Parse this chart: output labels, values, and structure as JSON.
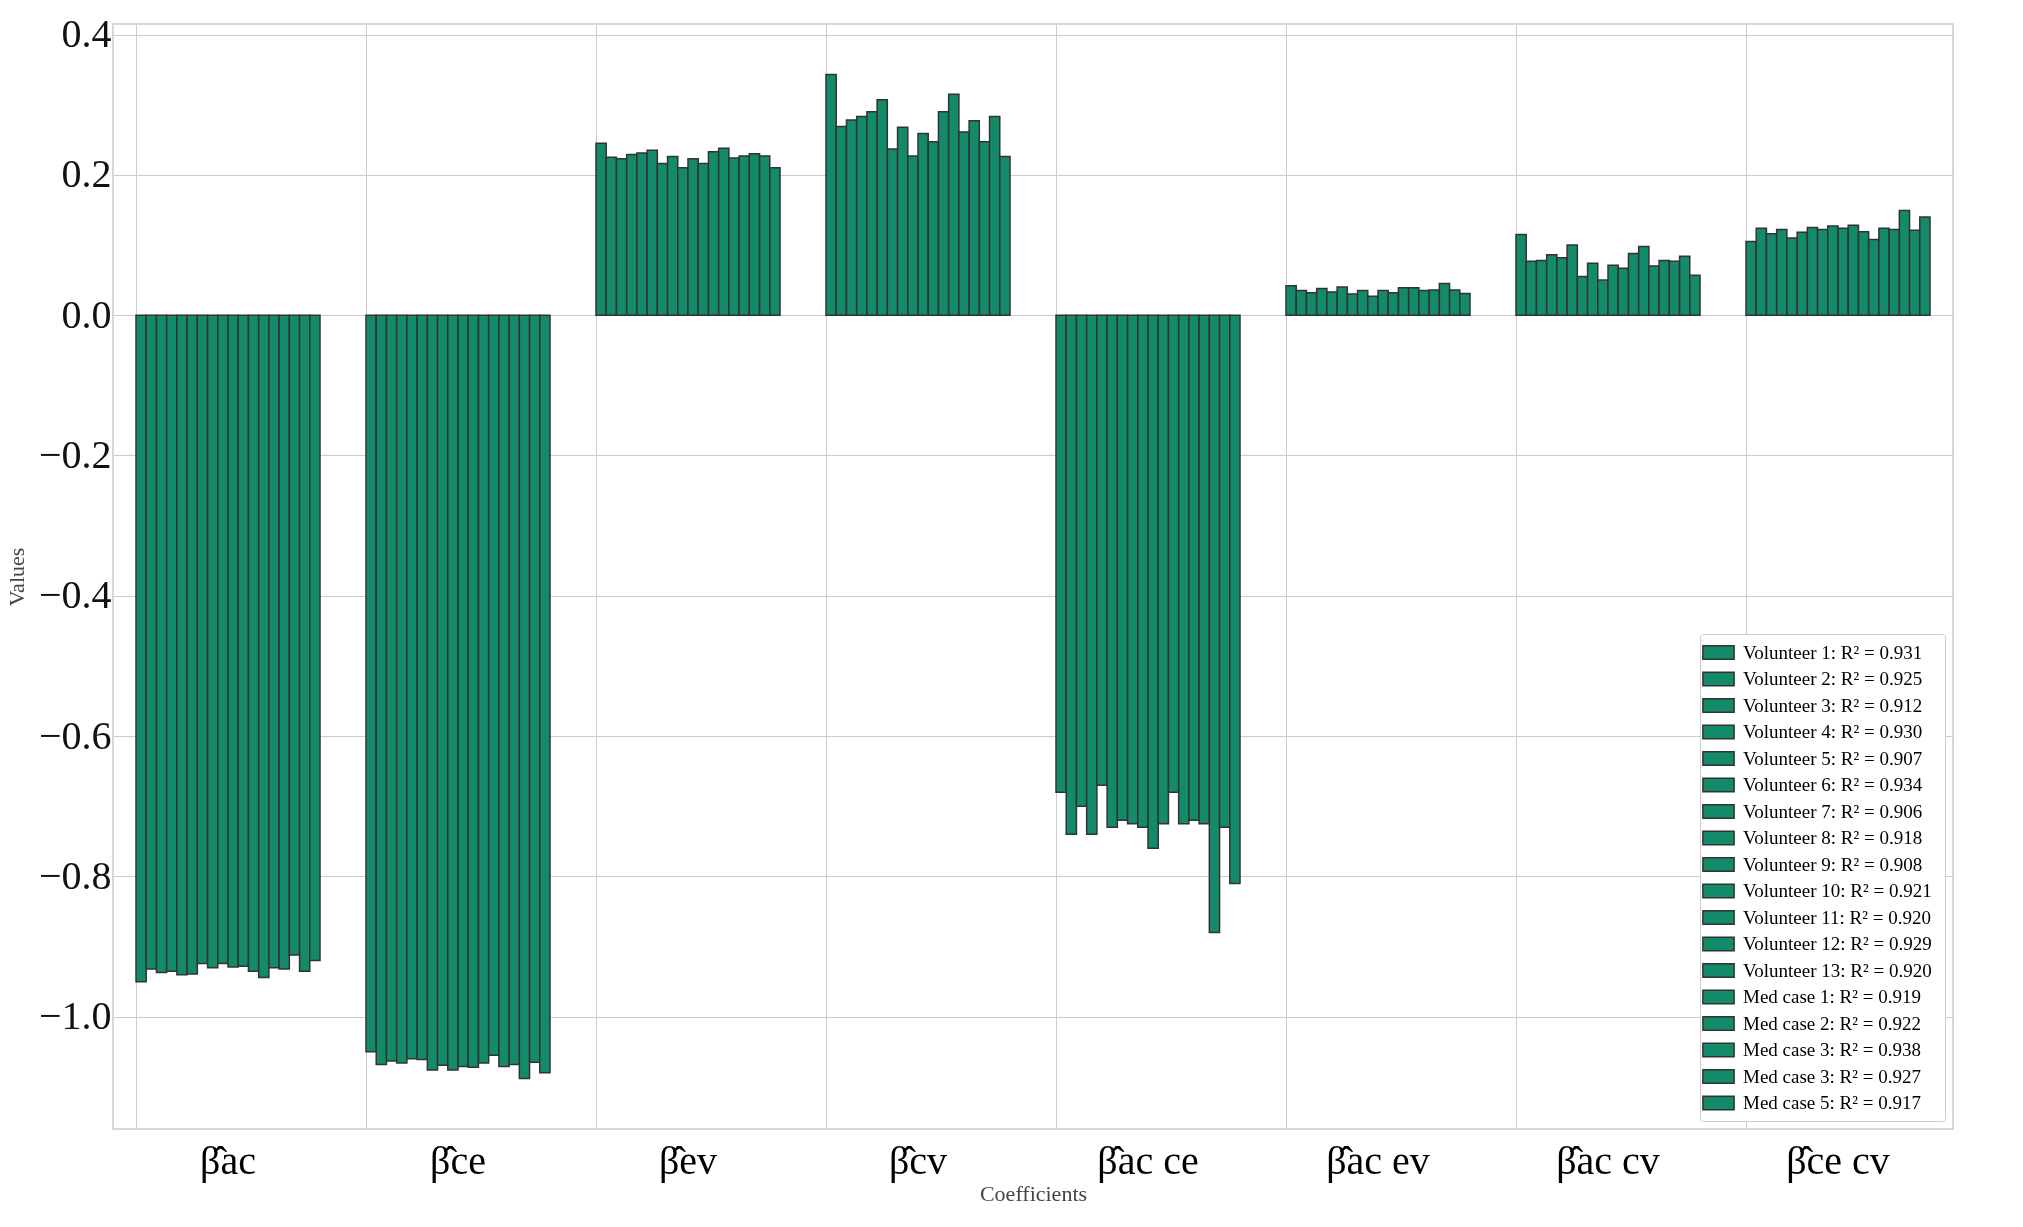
{
  "chart_data": {
    "type": "bar",
    "xlabel": "Coefficients",
    "ylabel": "Values",
    "categories": [
      "β̂ac",
      "β̂ce",
      "β̂ev",
      "β̂cv",
      "β̂ac ce",
      "β̂ac ev",
      "β̂ac cv",
      "β̂ce cv"
    ],
    "ylim": [
      -1.16,
      0.415
    ],
    "yticks": [
      {
        "value": -1.0,
        "label": "−1.0"
      },
      {
        "value": -0.8,
        "label": "−0.8"
      },
      {
        "value": -0.6,
        "label": "−0.6"
      },
      {
        "value": -0.4,
        "label": "−0.4"
      },
      {
        "value": -0.2,
        "label": "−0.2"
      },
      {
        "value": 0.0,
        "label": "0.0"
      },
      {
        "value": 0.2,
        "label": "0.2"
      },
      {
        "value": 0.4,
        "label": "0.4"
      }
    ],
    "grid": true,
    "legend": "bottom right",
    "series": [
      {
        "name": "Volunteer 1:  R² = 0.931",
        "color": "#138a6a",
        "values": [
          -0.95,
          -1.05,
          0.245,
          0.343,
          -0.68,
          0.042,
          0.115,
          0.105
        ]
      },
      {
        "name": "Volunteer 2:  R² = 0.925",
        "color": "#138a6a",
        "values": [
          -0.932,
          -1.068,
          0.225,
          0.269,
          -0.74,
          0.035,
          0.077,
          0.124
        ]
      },
      {
        "name": "Volunteer 3:  R² = 0.912",
        "color": "#138a6a",
        "values": [
          -0.937,
          -1.063,
          0.223,
          0.278,
          -0.7,
          0.032,
          0.078,
          0.116
        ]
      },
      {
        "name": "Volunteer 4:  R² = 0.930",
        "color": "#138a6a",
        "values": [
          -0.935,
          -1.066,
          0.229,
          0.283,
          -0.74,
          0.038,
          0.086,
          0.122
        ]
      },
      {
        "name": "Volunteer 5:  R² = 0.907",
        "color": "#138a6a",
        "values": [
          -0.94,
          -1.06,
          0.231,
          0.29,
          -0.67,
          0.033,
          0.082,
          0.11
        ]
      },
      {
        "name": "Volunteer 6:  R² = 0.934",
        "color": "#138a6a",
        "values": [
          -0.939,
          -1.061,
          0.235,
          0.307,
          -0.73,
          0.04,
          0.1,
          0.118
        ]
      },
      {
        "name": "Volunteer 7:  R² = 0.906",
        "color": "#138a6a",
        "values": [
          -0.924,
          -1.076,
          0.216,
          0.237,
          -0.72,
          0.03,
          0.055,
          0.125
        ]
      },
      {
        "name": "Volunteer 8:  R² = 0.918",
        "color": "#138a6a",
        "values": [
          -0.93,
          -1.069,
          0.226,
          0.268,
          -0.725,
          0.035,
          0.074,
          0.122
        ]
      },
      {
        "name": "Volunteer 9:  R² = 0.908",
        "color": "#138a6a",
        "values": [
          -0.924,
          -1.076,
          0.21,
          0.227,
          -0.73,
          0.027,
          0.05,
          0.127
        ]
      },
      {
        "name": "Volunteer 10:  R² = 0.921",
        "color": "#138a6a",
        "values": [
          -0.929,
          -1.071,
          0.223,
          0.259,
          -0.76,
          0.035,
          0.071,
          0.124
        ]
      },
      {
        "name": "Volunteer 11:  R² = 0.920",
        "color": "#138a6a",
        "values": [
          -0.928,
          -1.072,
          0.216,
          0.247,
          -0.725,
          0.032,
          0.067,
          0.128
        ]
      },
      {
        "name": "Volunteer 12:  R² = 0.929",
        "color": "#138a6a",
        "values": [
          -0.935,
          -1.066,
          0.233,
          0.29,
          -0.68,
          0.039,
          0.088,
          0.119
        ]
      },
      {
        "name": "Volunteer 13:  R² = 0.920",
        "color": "#138a6a",
        "values": [
          -0.944,
          -1.055,
          0.238,
          0.315,
          -0.725,
          0.039,
          0.098,
          0.108
        ]
      },
      {
        "name": "Med case 1:  R² = 0.919",
        "color": "#138a6a",
        "values": [
          -0.93,
          -1.071,
          0.224,
          0.261,
          -0.72,
          0.035,
          0.07,
          0.124
        ]
      },
      {
        "name": "Med case 2:  R² = 0.922",
        "color": "#138a6a",
        "values": [
          -0.932,
          -1.068,
          0.227,
          0.277,
          -0.725,
          0.036,
          0.078,
          0.122
        ]
      },
      {
        "name": "Med case 3:  R² = 0.938",
        "color": "#138a6a",
        "values": [
          -0.912,
          -1.088,
          0.23,
          0.247,
          -0.88,
          0.045,
          0.077,
          0.149
        ]
      },
      {
        "name": "Med case 3:  R² = 0.927",
        "color": "#138a6a",
        "values": [
          -0.935,
          -1.065,
          0.227,
          0.283,
          -0.73,
          0.036,
          0.084,
          0.121
        ]
      },
      {
        "name": "Med case 5:  R² = 0.917",
        "color": "#138a6a",
        "values": [
          -0.92,
          -1.08,
          0.21,
          0.226,
          -0.81,
          0.031,
          0.057,
          0.14
        ]
      }
    ]
  }
}
